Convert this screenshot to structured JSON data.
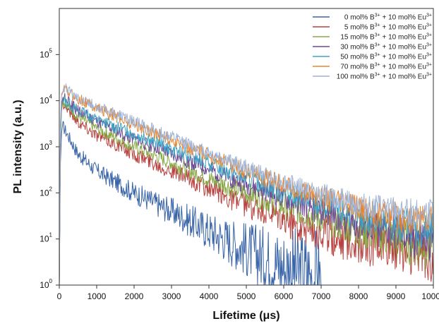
{
  "chart_data": {
    "type": "line",
    "title": "",
    "xlabel": "Lifetime (μs)",
    "ylabel": "PL intensity (a.u.)",
    "xlim": [
      0,
      10000
    ],
    "ylim": [
      1,
      1000000
    ],
    "y_scale": "log",
    "x_ticks": [
      0,
      1000,
      2000,
      3000,
      4000,
      5000,
      6000,
      7000,
      8000,
      9000,
      10000
    ],
    "y_ticks": [
      {
        "base": "10",
        "exp": "0"
      },
      {
        "base": "10",
        "exp": "1"
      },
      {
        "base": "10",
        "exp": "2"
      },
      {
        "base": "10",
        "exp": "3"
      },
      {
        "base": "10",
        "exp": "4"
      },
      {
        "base": "10",
        "exp": "5"
      }
    ],
    "grid": false,
    "legend_position": "top-right",
    "series": [
      {
        "name": "0 mol% B3+ + 10 mol% Eu3+",
        "legend": {
          "a": "0 mol% B",
          "b": "+ 10 mol% Eu"
        },
        "color": "#3a65a8",
        "x": [
          100,
          500,
          1000,
          2000,
          3000,
          4000,
          5000,
          6000,
          7000
        ],
        "y": [
          2800,
          700,
          300,
          100,
          40,
          15,
          6,
          2.5,
          1.2
        ]
      },
      {
        "name": "5 mol% B3+ + 10 mol% Eu3+",
        "legend": {
          "a": "5 mol% B",
          "b": "+ 10 mol% Eu"
        },
        "color": "#b8423f",
        "x": [
          100,
          500,
          1000,
          2000,
          3000,
          4000,
          5000,
          6000,
          7000,
          8000,
          9000,
          10000
        ],
        "y": [
          9000,
          3500,
          1800,
          700,
          300,
          120,
          55,
          25,
          14,
          9,
          7,
          5
        ]
      },
      {
        "name": "15 mol% B3+ + 10 mol% Eu3+",
        "legend": {
          "a": "15 mol% B",
          "b": "+ 10 mol% Eu"
        },
        "color": "#86a845",
        "x": [
          100,
          500,
          1000,
          2000,
          3000,
          4000,
          5000,
          6000,
          7000,
          8000,
          9000,
          10000
        ],
        "y": [
          10000,
          4500,
          2500,
          1000,
          450,
          200,
          100,
          50,
          28,
          16,
          10,
          7
        ]
      },
      {
        "name": "30 mol% B3+ + 10 mol% Eu3+",
        "legend": {
          "a": "30 mol% B",
          "b": "+ 10 mol% Eu"
        },
        "color": "#6d4a95",
        "x": [
          100,
          500,
          1000,
          2000,
          3000,
          4000,
          5000,
          6000,
          7000,
          8000,
          9000,
          10000
        ],
        "y": [
          12000,
          6000,
          3500,
          1500,
          700,
          320,
          150,
          75,
          40,
          22,
          14,
          9
        ]
      },
      {
        "name": "50 mol% B3+ + 10 mol% Eu3+",
        "legend": {
          "a": "50 mol% B",
          "b": "+ 10 mol% Eu"
        },
        "color": "#3ea3c2",
        "x": [
          100,
          500,
          1000,
          2000,
          3000,
          4000,
          5000,
          6000,
          7000,
          8000,
          9000,
          10000
        ],
        "y": [
          11000,
          6000,
          4000,
          1900,
          900,
          430,
          210,
          100,
          55,
          30,
          20,
          15
        ]
      },
      {
        "name": "70 mol% B3+ + 10 mol% Eu3+",
        "legend": {
          "a": "70 mol% B",
          "b": "+ 10 mol% Eu"
        },
        "color": "#e9852e",
        "x": [
          100,
          500,
          1000,
          2000,
          3000,
          4000,
          5000,
          6000,
          7000,
          8000,
          9000,
          10000
        ],
        "y": [
          18000,
          11000,
          7000,
          3000,
          1400,
          650,
          300,
          150,
          80,
          45,
          30,
          25
        ]
      },
      {
        "name": "100 mol% B3+ + 10 mol% Eu3+",
        "legend": {
          "a": "100 mol% B",
          "b": "+ 10 mol% Eu"
        },
        "color": "#9fb4d6",
        "x": [
          100,
          500,
          1000,
          2000,
          3000,
          4000,
          5000,
          6000,
          7000,
          8000,
          9000,
          10000
        ],
        "y": [
          20000,
          12000,
          7500,
          3500,
          1600,
          750,
          350,
          170,
          95,
          55,
          40,
          35
        ]
      }
    ]
  }
}
